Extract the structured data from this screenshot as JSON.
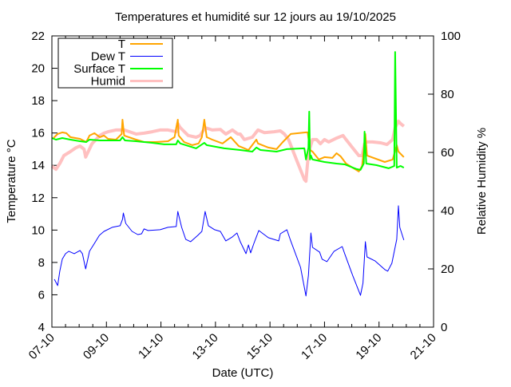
{
  "chart_data": {
    "type": "line",
    "title": "Temperatures et humidité sur 12 jours au 19/10/2025",
    "xlabel": "Date (UTC)",
    "ylabel": "Temperature °C",
    "y2label": "Relative Humidity %",
    "x_unit": "days since 07-10",
    "xlim": [
      0,
      14
    ],
    "ylim": [
      4,
      22
    ],
    "y2lim": [
      0,
      100
    ],
    "x_ticks": [
      {
        "value": 0,
        "label": "07-10"
      },
      {
        "value": 2,
        "label": "09-10"
      },
      {
        "value": 4,
        "label": "11-10"
      },
      {
        "value": 6,
        "label": "13-10"
      },
      {
        "value": 8,
        "label": "15-10"
      },
      {
        "value": 10,
        "label": "17-10"
      },
      {
        "value": 12,
        "label": "19-10"
      },
      {
        "value": 14,
        "label": "21-10"
      }
    ],
    "y_ticks": [
      4,
      6,
      8,
      10,
      12,
      14,
      16,
      18,
      20,
      22
    ],
    "y2_ticks": [
      0,
      20,
      40,
      60,
      80,
      100
    ],
    "grid": false,
    "legend_position": "top-left",
    "series": [
      {
        "name": "T",
        "axis": "y",
        "color": "#ffa500",
        "width": 2,
        "points": [
          [
            0.06,
            15.69
          ],
          [
            0.21,
            15.94
          ],
          [
            0.38,
            16.04
          ],
          [
            0.53,
            15.99
          ],
          [
            0.68,
            15.74
          ],
          [
            1.03,
            15.64
          ],
          [
            1.26,
            15.44
          ],
          [
            1.38,
            15.84
          ],
          [
            1.56,
            15.99
          ],
          [
            1.76,
            15.74
          ],
          [
            1.91,
            15.84
          ],
          [
            2.06,
            15.64
          ],
          [
            2.35,
            15.59
          ],
          [
            2.56,
            15.94
          ],
          [
            2.59,
            16.82
          ],
          [
            2.65,
            15.84
          ],
          [
            3.09,
            15.59
          ],
          [
            3.38,
            15.44
          ],
          [
            3.82,
            15.44
          ],
          [
            4.26,
            15.49
          ],
          [
            4.5,
            15.74
          ],
          [
            4.62,
            16.82
          ],
          [
            4.65,
            15.84
          ],
          [
            4.85,
            15.44
          ],
          [
            5.15,
            15.25
          ],
          [
            5.38,
            15.35
          ],
          [
            5.5,
            15.74
          ],
          [
            5.59,
            16.82
          ],
          [
            5.68,
            15.74
          ],
          [
            5.88,
            15.59
          ],
          [
            6.26,
            15.35
          ],
          [
            6.56,
            15.74
          ],
          [
            6.85,
            15.2
          ],
          [
            7.21,
            14.95
          ],
          [
            7.5,
            15.59
          ],
          [
            7.56,
            15.35
          ],
          [
            7.94,
            15.1
          ],
          [
            8.24,
            15.0
          ],
          [
            8.47,
            15.44
          ],
          [
            8.76,
            15.94
          ],
          [
            9.32,
            16.04
          ],
          [
            9.38,
            16.04
          ],
          [
            9.47,
            14.95
          ],
          [
            9.56,
            14.85
          ],
          [
            9.79,
            14.36
          ],
          [
            10.0,
            14.51
          ],
          [
            10.29,
            14.46
          ],
          [
            10.44,
            14.75
          ],
          [
            10.59,
            14.56
          ],
          [
            10.79,
            14.11
          ],
          [
            11.03,
            13.86
          ],
          [
            11.26,
            13.62
          ],
          [
            11.38,
            13.96
          ],
          [
            11.5,
            15.94
          ],
          [
            11.56,
            14.61
          ],
          [
            12.21,
            14.21
          ],
          [
            12.5,
            14.36
          ],
          [
            12.65,
            15.25
          ],
          [
            12.71,
            14.85
          ],
          [
            12.91,
            14.51
          ]
        ]
      },
      {
        "name": "Dew T",
        "axis": "y",
        "color": "#0000ff",
        "width": 1,
        "points": [
          [
            0.09,
            6.96
          ],
          [
            0.21,
            6.57
          ],
          [
            0.29,
            7.46
          ],
          [
            0.38,
            8.2
          ],
          [
            0.5,
            8.54
          ],
          [
            0.62,
            8.69
          ],
          [
            0.82,
            8.54
          ],
          [
            1.03,
            8.74
          ],
          [
            1.12,
            8.54
          ],
          [
            1.24,
            7.6
          ],
          [
            1.38,
            8.69
          ],
          [
            1.56,
            9.18
          ],
          [
            1.74,
            9.67
          ],
          [
            1.91,
            9.92
          ],
          [
            2.21,
            10.17
          ],
          [
            2.5,
            10.27
          ],
          [
            2.59,
            10.66
          ],
          [
            2.62,
            11.05
          ],
          [
            2.71,
            10.41
          ],
          [
            2.94,
            9.92
          ],
          [
            3.15,
            9.72
          ],
          [
            3.29,
            9.77
          ],
          [
            3.38,
            10.07
          ],
          [
            3.53,
            9.97
          ],
          [
            3.97,
            10.02
          ],
          [
            4.26,
            10.17
          ],
          [
            4.56,
            10.22
          ],
          [
            4.62,
            11.15
          ],
          [
            4.76,
            10.17
          ],
          [
            4.91,
            9.43
          ],
          [
            5.09,
            9.28
          ],
          [
            5.35,
            9.67
          ],
          [
            5.5,
            9.92
          ],
          [
            5.62,
            11.15
          ],
          [
            5.74,
            10.27
          ],
          [
            5.97,
            10.02
          ],
          [
            6.18,
            9.92
          ],
          [
            6.38,
            9.33
          ],
          [
            6.62,
            9.58
          ],
          [
            6.79,
            9.82
          ],
          [
            6.91,
            9.28
          ],
          [
            7.12,
            8.54
          ],
          [
            7.21,
            9.08
          ],
          [
            7.29,
            8.59
          ],
          [
            7.41,
            9.18
          ],
          [
            7.59,
            9.97
          ],
          [
            7.94,
            9.53
          ],
          [
            8.32,
            9.33
          ],
          [
            8.38,
            9.77
          ],
          [
            8.62,
            10.02
          ],
          [
            8.74,
            9.43
          ],
          [
            9.12,
            7.7
          ],
          [
            9.32,
            5.93
          ],
          [
            9.41,
            7.21
          ],
          [
            9.5,
            9.82
          ],
          [
            9.56,
            8.93
          ],
          [
            9.82,
            8.64
          ],
          [
            9.91,
            8.2
          ],
          [
            10.09,
            8.05
          ],
          [
            10.35,
            8.69
          ],
          [
            10.65,
            8.98
          ],
          [
            10.74,
            8.54
          ],
          [
            11.03,
            7.21
          ],
          [
            11.32,
            5.97
          ],
          [
            11.41,
            6.72
          ],
          [
            11.5,
            9.28
          ],
          [
            11.56,
            8.34
          ],
          [
            11.85,
            8.1
          ],
          [
            12.21,
            7.56
          ],
          [
            12.32,
            7.46
          ],
          [
            12.47,
            7.95
          ],
          [
            12.65,
            9.43
          ],
          [
            12.71,
            11.5
          ],
          [
            12.76,
            10.17
          ],
          [
            12.91,
            9.38
          ]
        ]
      },
      {
        "name": "Surface T",
        "axis": "y",
        "color": "#00ff00",
        "width": 2,
        "points": [
          [
            0.0,
            15.69
          ],
          [
            0.15,
            15.59
          ],
          [
            0.38,
            15.69
          ],
          [
            0.68,
            15.59
          ],
          [
            1.03,
            15.49
          ],
          [
            1.26,
            15.44
          ],
          [
            1.38,
            15.59
          ],
          [
            1.76,
            15.54
          ],
          [
            2.5,
            15.54
          ],
          [
            2.59,
            15.74
          ],
          [
            2.68,
            15.54
          ],
          [
            3.09,
            15.49
          ],
          [
            3.68,
            15.39
          ],
          [
            4.12,
            15.3
          ],
          [
            4.56,
            15.3
          ],
          [
            4.62,
            15.54
          ],
          [
            4.71,
            15.35
          ],
          [
            5.29,
            15.05
          ],
          [
            5.59,
            15.39
          ],
          [
            5.68,
            15.25
          ],
          [
            6.32,
            15.05
          ],
          [
            6.91,
            14.95
          ],
          [
            7.35,
            14.85
          ],
          [
            7.5,
            15.1
          ],
          [
            7.65,
            14.95
          ],
          [
            8.24,
            14.85
          ],
          [
            8.62,
            15.0
          ],
          [
            9.26,
            15.05
          ],
          [
            9.32,
            14.36
          ],
          [
            9.41,
            15.1
          ],
          [
            9.44,
            17.32
          ],
          [
            9.47,
            14.36
          ],
          [
            9.5,
            14.61
          ],
          [
            9.56,
            14.36
          ],
          [
            10.0,
            14.21
          ],
          [
            10.44,
            14.11
          ],
          [
            10.74,
            14.06
          ],
          [
            11.18,
            13.77
          ],
          [
            11.32,
            13.72
          ],
          [
            11.44,
            14.11
          ],
          [
            11.47,
            16.08
          ],
          [
            11.53,
            14.11
          ],
          [
            11.91,
            14.01
          ],
          [
            12.35,
            13.82
          ],
          [
            12.56,
            13.96
          ],
          [
            12.59,
            21.01
          ],
          [
            12.65,
            13.86
          ],
          [
            12.79,
            13.96
          ],
          [
            12.91,
            13.86
          ]
        ]
      },
      {
        "name": "Humid",
        "axis": "y2",
        "color": "#ffc0c0",
        "width": 4,
        "points": [
          [
            0.0,
            55.3
          ],
          [
            0.15,
            54.2
          ],
          [
            0.29,
            56.2
          ],
          [
            0.44,
            58.9
          ],
          [
            0.68,
            60.3
          ],
          [
            0.88,
            61.6
          ],
          [
            1.03,
            62.2
          ],
          [
            1.18,
            61.1
          ],
          [
            1.24,
            58.4
          ],
          [
            1.47,
            63.0
          ],
          [
            1.76,
            65.8
          ],
          [
            1.91,
            66.6
          ],
          [
            2.06,
            67.1
          ],
          [
            2.35,
            67.7
          ],
          [
            2.65,
            67.7
          ],
          [
            2.85,
            67.1
          ],
          [
            3.09,
            66.3
          ],
          [
            3.38,
            66.6
          ],
          [
            3.68,
            67.1
          ],
          [
            3.97,
            67.7
          ],
          [
            4.26,
            67.7
          ],
          [
            4.56,
            67.1
          ],
          [
            4.62,
            69.9
          ],
          [
            4.71,
            68.5
          ],
          [
            5.0,
            65.8
          ],
          [
            5.29,
            65.2
          ],
          [
            5.44,
            65.8
          ],
          [
            5.62,
            68.5
          ],
          [
            5.88,
            67.7
          ],
          [
            6.18,
            67.9
          ],
          [
            6.38,
            66.3
          ],
          [
            6.62,
            67.7
          ],
          [
            6.82,
            66.3
          ],
          [
            6.91,
            66.3
          ],
          [
            7.06,
            64.4
          ],
          [
            7.35,
            65.2
          ],
          [
            7.56,
            67.7
          ],
          [
            7.79,
            66.8
          ],
          [
            8.15,
            67.1
          ],
          [
            8.38,
            67.4
          ],
          [
            8.53,
            66.3
          ],
          [
            8.68,
            64.4
          ],
          [
            8.97,
            57.5
          ],
          [
            9.26,
            50.7
          ],
          [
            9.32,
            50.1
          ],
          [
            9.41,
            59.7
          ],
          [
            9.56,
            64.4
          ],
          [
            9.71,
            64.4
          ],
          [
            9.85,
            63.0
          ],
          [
            10.0,
            64.4
          ],
          [
            10.15,
            63.6
          ],
          [
            10.44,
            64.9
          ],
          [
            10.68,
            65.8
          ],
          [
            10.79,
            64.4
          ],
          [
            11.03,
            61.6
          ],
          [
            11.26,
            58.9
          ],
          [
            11.38,
            58.9
          ],
          [
            11.47,
            63.0
          ],
          [
            11.53,
            63.6
          ],
          [
            11.76,
            63.6
          ],
          [
            12.06,
            63.3
          ],
          [
            12.29,
            62.7
          ],
          [
            12.5,
            64.4
          ],
          [
            12.59,
            68.5
          ],
          [
            12.71,
            70.7
          ],
          [
            12.79,
            69.9
          ],
          [
            12.91,
            69.0
          ]
        ]
      }
    ]
  }
}
